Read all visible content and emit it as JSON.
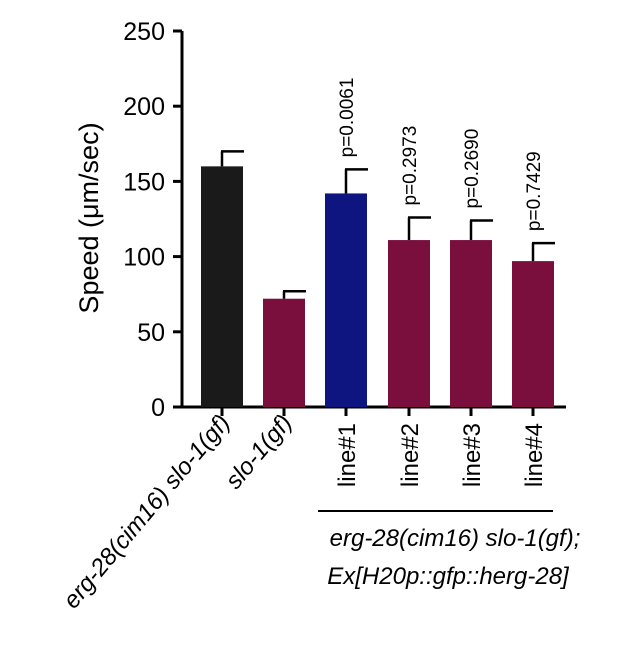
{
  "chart_data": {
    "type": "bar",
    "ylabel": "Speed (μm/sec)",
    "ylim": [
      0,
      250
    ],
    "yticks": [
      0,
      50,
      100,
      150,
      200,
      250
    ],
    "categories": [
      "erg-28(cim16) slo-1(gf)",
      "slo-1(gf)",
      "line#1",
      "line#2",
      "line#3",
      "line#4"
    ],
    "values": [
      160,
      72,
      142,
      111,
      111,
      97
    ],
    "errors": [
      10,
      5,
      16,
      15,
      13,
      12
    ],
    "colors": [
      "#1a1a1a",
      "#7a0f3e",
      "#0e1580",
      "#7a0f3e",
      "#7a0f3e",
      "#7a0f3e"
    ],
    "pvalues": [
      "",
      "",
      "p=0.0061",
      "p=0.2973",
      "p=0.2690",
      "p=0.7429"
    ],
    "category_italic": [
      true,
      true,
      false,
      false,
      false,
      false
    ],
    "group_label": [
      "erg-28(cim16) slo-1(gf);",
      "Ex[H20p::gfp::herg-28]"
    ],
    "grid": false,
    "legend": "none"
  }
}
